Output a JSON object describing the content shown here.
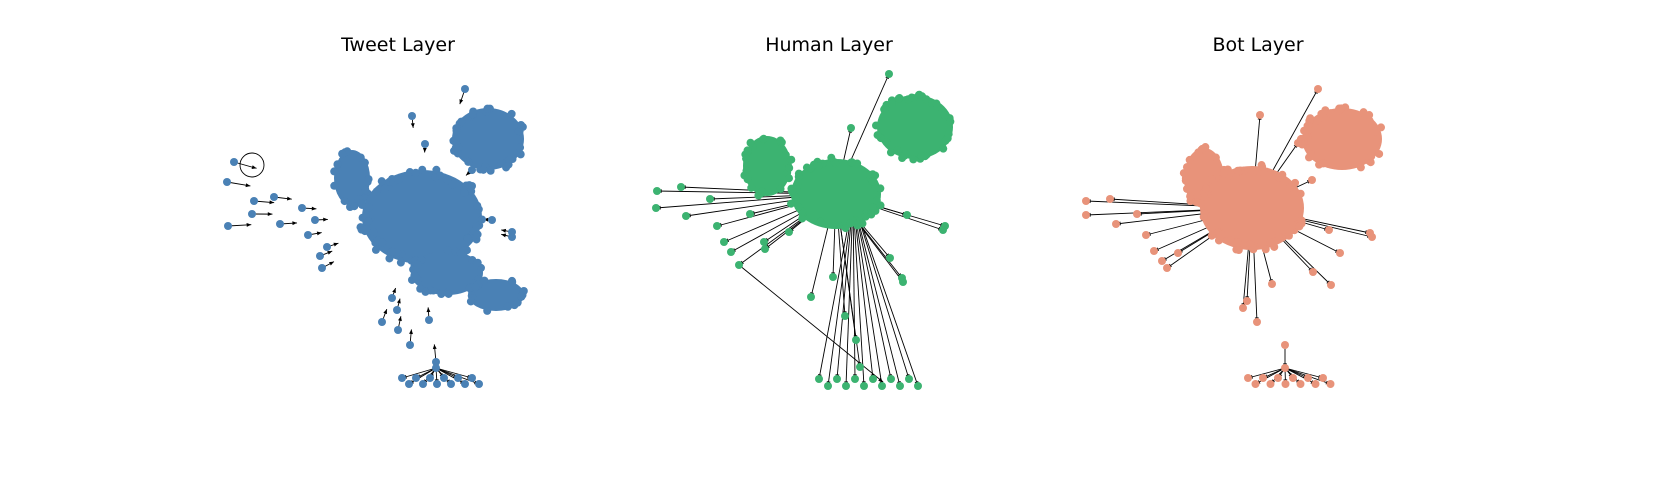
{
  "figure": {
    "panels": [
      {
        "id": "tweet",
        "title": "Tweet Layer",
        "node_color": "#4a81b5"
      },
      {
        "id": "human",
        "title": "Human Layer",
        "node_color": "#3cb371"
      },
      {
        "id": "bot",
        "title": "Bot Layer",
        "node_color": "#e8937a"
      }
    ],
    "edge_color": "#000000"
  }
}
